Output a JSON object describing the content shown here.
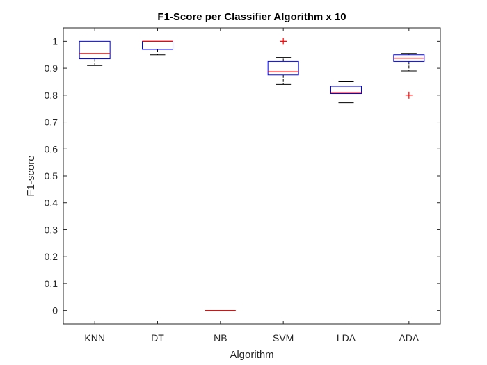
{
  "chart_data": {
    "type": "boxplot",
    "title": "F1-Score per Classifier Algorithm x 10",
    "xlabel": "Algorithm",
    "ylabel": "F1-score",
    "ylim": [
      -0.05,
      1.05
    ],
    "yticks": [
      0,
      0.1,
      0.2,
      0.3,
      0.4,
      0.5,
      0.6,
      0.7,
      0.8,
      0.9,
      1
    ],
    "ytick_labels": [
      "0",
      "0.1",
      "0.2",
      "0.3",
      "0.4",
      "0.5",
      "0.6",
      "0.7",
      "0.8",
      "0.9",
      "1"
    ],
    "grid": false,
    "categories": [
      "KNN",
      "DT",
      "NB",
      "SVM",
      "LDA",
      "ADA"
    ],
    "boxes": [
      {
        "category": "KNN",
        "whisker_low": 0.91,
        "q1": 0.935,
        "median": 0.955,
        "q3": 1.0,
        "whisker_high": 1.0,
        "outliers": []
      },
      {
        "category": "DT",
        "whisker_low": 0.95,
        "q1": 0.97,
        "median": 1.0,
        "q3": 1.0,
        "whisker_high": 1.0,
        "outliers": []
      },
      {
        "category": "NB",
        "whisker_low": 0.0,
        "q1": 0.0,
        "median": 0.0,
        "q3": 0.0,
        "whisker_high": 0.0,
        "outliers": []
      },
      {
        "category": "SVM",
        "whisker_low": 0.84,
        "q1": 0.875,
        "median": 0.887,
        "q3": 0.925,
        "whisker_high": 0.94,
        "outliers": [
          1.0
        ]
      },
      {
        "category": "LDA",
        "whisker_low": 0.772,
        "q1": 0.806,
        "median": 0.81,
        "q3": 0.833,
        "whisker_high": 0.85,
        "outliers": []
      },
      {
        "category": "ADA",
        "whisker_low": 0.89,
        "q1": 0.925,
        "median": 0.937,
        "q3": 0.95,
        "whisker_high": 0.955,
        "outliers": [
          0.8
        ]
      }
    ],
    "colors": {
      "box": "#0000ff",
      "median": "#ff0000",
      "whisker": "#000000",
      "outlier": "#ff0000",
      "axis": "#262626"
    }
  }
}
